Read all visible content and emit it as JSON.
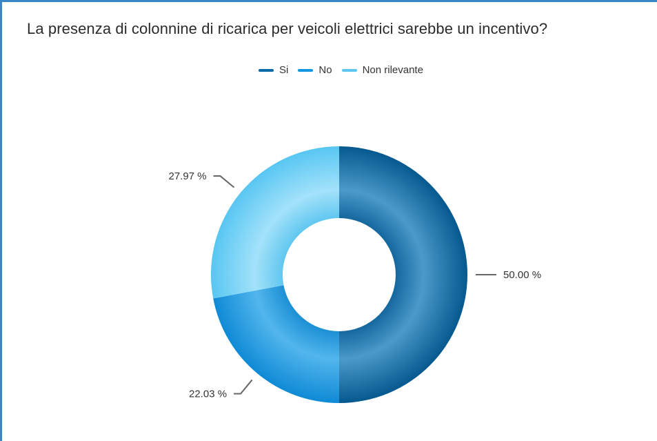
{
  "chart_data": {
    "type": "pie",
    "title": "La presenza di colonnine di ricarica per veicoli elettrici sarebbe un incentivo?",
    "categories": [
      "Si",
      "No",
      "Non rilevante"
    ],
    "values": [
      50.0,
      22.03,
      27.97
    ],
    "labels": [
      "50.00 %",
      "22.03 %",
      "27.97 %"
    ],
    "colors": [
      "#0a6aa8",
      "#1497e0",
      "#5cc8f2"
    ],
    "legend": "top-center",
    "donut": true
  }
}
